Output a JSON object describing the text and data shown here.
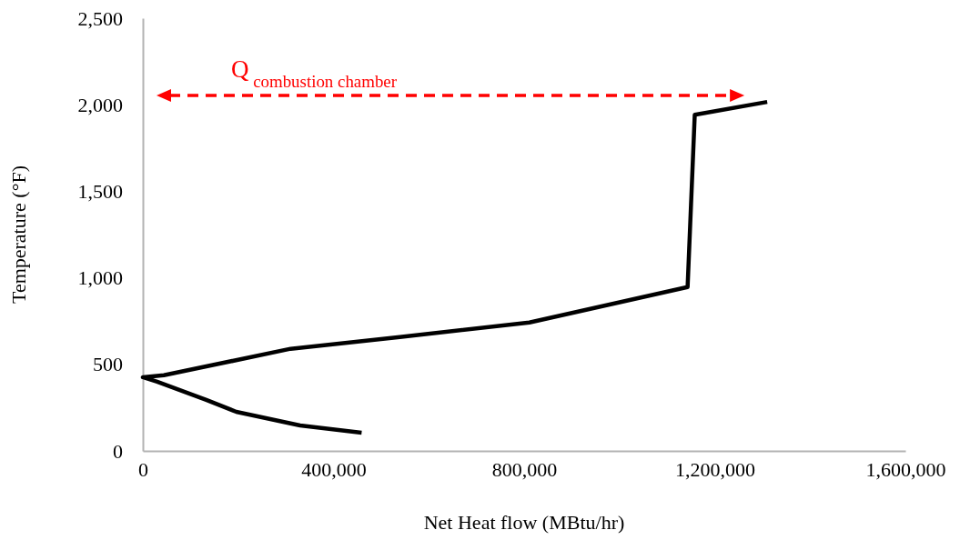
{
  "chart_data": {
    "type": "line",
    "xlabel": "Net Heat flow (MBtu/hr)",
    "ylabel": "Temperature (°F)",
    "xlim": [
      0,
      1600000
    ],
    "xticks": [
      {
        "value": 0,
        "label": "0"
      },
      {
        "value": 400000,
        "label": "400,000"
      },
      {
        "value": 800000,
        "label": "800,000"
      },
      {
        "value": 1200000,
        "label": "1,200,000"
      },
      {
        "value": 1600000,
        "label": "1,600,000"
      }
    ],
    "ylim": [
      0,
      2500
    ],
    "yticks": [
      {
        "value": 0,
        "label": "0"
      },
      {
        "value": 500,
        "label": "500"
      },
      {
        "value": 1000,
        "label": "1,000"
      },
      {
        "value": 1500,
        "label": "1,500"
      },
      {
        "value": 2000,
        "label": "2,000"
      },
      {
        "value": 2500,
        "label": "2,500"
      }
    ],
    "grid": false,
    "marker": "none",
    "line_style": "solid",
    "series": [
      {
        "color": "#000000",
        "x": [
          459000,
          330000,
          196000,
          133000,
          30000,
          0,
          44000,
          310000,
          539000,
          811000,
          1143000,
          1158000,
          1310000
        ],
        "values": [
          105,
          147,
          226,
          295,
          400,
          426,
          437,
          590,
          658,
          742,
          947,
          1942,
          2016
        ]
      }
    ],
    "annotations": [
      "Q$_{combustion chamber}$"
    ]
  }
}
